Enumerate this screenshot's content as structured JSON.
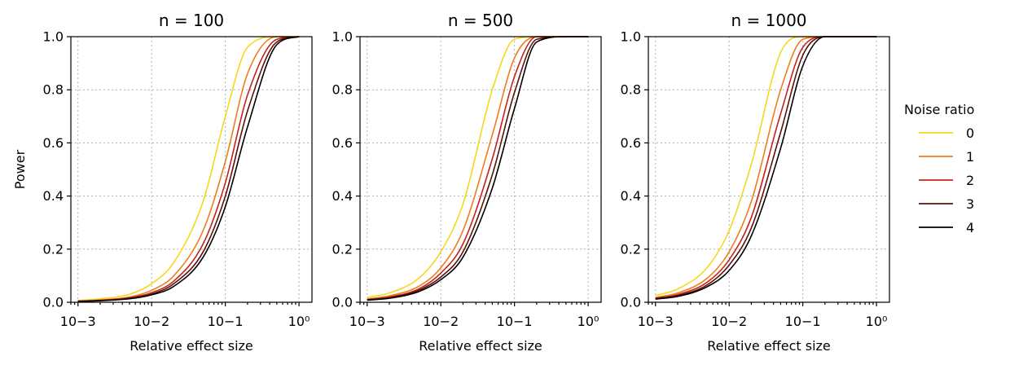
{
  "chart_data": [
    {
      "type": "line",
      "title": "n = 100",
      "xlabel": "Relative effect size",
      "ylabel": "Power",
      "x_scale": "log",
      "xlim": [
        0.0008,
        1.5
      ],
      "ylim": [
        0,
        1
      ],
      "grid": true,
      "x_ticks": [
        {
          "value": 0.001,
          "label": "10−3"
        },
        {
          "value": 0.01,
          "label": "10−2"
        },
        {
          "value": 0.1,
          "label": "10−1"
        },
        {
          "value": 1,
          "label": "10⁰"
        }
      ],
      "y_ticks": [
        "0.0",
        "0.2",
        "0.4",
        "0.6",
        "0.8",
        "1.0"
      ],
      "x": [
        0.001,
        0.002,
        0.005,
        0.01,
        0.02,
        0.05,
        0.1,
        0.2,
        0.5,
        1.0
      ],
      "series": [
        {
          "name": "0",
          "color": "#f5d81c",
          "values": [
            0.007,
            0.013,
            0.03,
            0.07,
            0.15,
            0.38,
            0.7,
            0.96,
            1.0,
            1.0
          ]
        },
        {
          "name": "1",
          "color": "#ee7d1a",
          "values": [
            0.005,
            0.009,
            0.02,
            0.045,
            0.1,
            0.27,
            0.53,
            0.86,
            1.0,
            1.0
          ]
        },
        {
          "name": "2",
          "color": "#c6221a",
          "values": [
            0.004,
            0.007,
            0.017,
            0.036,
            0.08,
            0.22,
            0.45,
            0.78,
            0.99,
            1.0
          ]
        },
        {
          "name": "3",
          "color": "#5c1208",
          "values": [
            0.004,
            0.006,
            0.015,
            0.031,
            0.07,
            0.19,
            0.4,
            0.72,
            0.98,
            1.0
          ]
        },
        {
          "name": "4",
          "color": "#000000",
          "values": [
            0.003,
            0.006,
            0.013,
            0.028,
            0.06,
            0.17,
            0.36,
            0.66,
            0.97,
            1.0
          ]
        }
      ]
    },
    {
      "type": "line",
      "title": "n = 500",
      "xlabel": "Relative effect size",
      "ylabel": "",
      "x_scale": "log",
      "xlim": [
        0.0008,
        1.5
      ],
      "ylim": [
        0,
        1
      ],
      "grid": true,
      "x_ticks": [
        {
          "value": 0.001,
          "label": "10−3"
        },
        {
          "value": 0.01,
          "label": "10−2"
        },
        {
          "value": 0.1,
          "label": "10−1"
        },
        {
          "value": 1,
          "label": "10⁰"
        }
      ],
      "y_ticks": [
        "0.0",
        "0.2",
        "0.4",
        "0.6",
        "0.8",
        "1.0"
      ],
      "x": [
        0.001,
        0.002,
        0.005,
        0.01,
        0.02,
        0.05,
        0.1,
        0.2,
        0.5,
        1.0
      ],
      "series": [
        {
          "name": "0",
          "color": "#f5d81c",
          "values": [
            0.018,
            0.035,
            0.09,
            0.19,
            0.37,
            0.8,
            0.99,
            1.0,
            1.0,
            1.0
          ]
        },
        {
          "name": "1",
          "color": "#ee7d1a",
          "values": [
            0.012,
            0.024,
            0.06,
            0.13,
            0.27,
            0.63,
            0.92,
            1.0,
            1.0,
            1.0
          ]
        },
        {
          "name": "2",
          "color": "#c6221a",
          "values": [
            0.01,
            0.02,
            0.05,
            0.11,
            0.22,
            0.54,
            0.85,
            1.0,
            1.0,
            1.0
          ]
        },
        {
          "name": "3",
          "color": "#5c1208",
          "values": [
            0.009,
            0.017,
            0.045,
            0.095,
            0.19,
            0.48,
            0.79,
            0.99,
            1.0,
            1.0
          ]
        },
        {
          "name": "4",
          "color": "#000000",
          "values": [
            0.008,
            0.015,
            0.04,
            0.085,
            0.17,
            0.43,
            0.73,
            0.98,
            1.0,
            1.0
          ]
        }
      ]
    },
    {
      "type": "line",
      "title": "n = 1000",
      "xlabel": "Relative effect size",
      "ylabel": "",
      "x_scale": "log",
      "xlim": [
        0.0008,
        1.5
      ],
      "ylim": [
        0,
        1
      ],
      "grid": true,
      "x_ticks": [
        {
          "value": 0.001,
          "label": "10−3"
        },
        {
          "value": 0.01,
          "label": "10−2"
        },
        {
          "value": 0.1,
          "label": "10−1"
        },
        {
          "value": 1,
          "label": "10⁰"
        }
      ],
      "y_ticks": [
        "0.0",
        "0.2",
        "0.4",
        "0.6",
        "0.8",
        "1.0"
      ],
      "x": [
        0.001,
        0.002,
        0.005,
        0.01,
        0.02,
        0.05,
        0.1,
        0.2,
        0.5,
        1.0
      ],
      "series": [
        {
          "name": "0",
          "color": "#f5d81c",
          "values": [
            0.025,
            0.05,
            0.13,
            0.27,
            0.52,
            0.94,
            1.0,
            1.0,
            1.0,
            1.0
          ]
        },
        {
          "name": "1",
          "color": "#ee7d1a",
          "values": [
            0.018,
            0.035,
            0.09,
            0.19,
            0.38,
            0.8,
            0.99,
            1.0,
            1.0,
            1.0
          ]
        },
        {
          "name": "2",
          "color": "#c6221a",
          "values": [
            0.015,
            0.029,
            0.075,
            0.16,
            0.32,
            0.71,
            0.96,
            1.0,
            1.0,
            1.0
          ]
        },
        {
          "name": "3",
          "color": "#5c1208",
          "values": [
            0.013,
            0.025,
            0.065,
            0.14,
            0.28,
            0.64,
            0.93,
            1.0,
            1.0,
            1.0
          ]
        },
        {
          "name": "4",
          "color": "#000000",
          "values": [
            0.012,
            0.022,
            0.058,
            0.12,
            0.25,
            0.58,
            0.89,
            1.0,
            1.0,
            1.0
          ]
        }
      ]
    }
  ],
  "legend": {
    "title": "Noise ratio",
    "placement": "right",
    "items": [
      {
        "label": "0",
        "color": "#f5d81c"
      },
      {
        "label": "1",
        "color": "#ee7d1a"
      },
      {
        "label": "2",
        "color": "#c6221a"
      },
      {
        "label": "3",
        "color": "#5c1208"
      },
      {
        "label": "4",
        "color": "#000000"
      }
    ]
  }
}
